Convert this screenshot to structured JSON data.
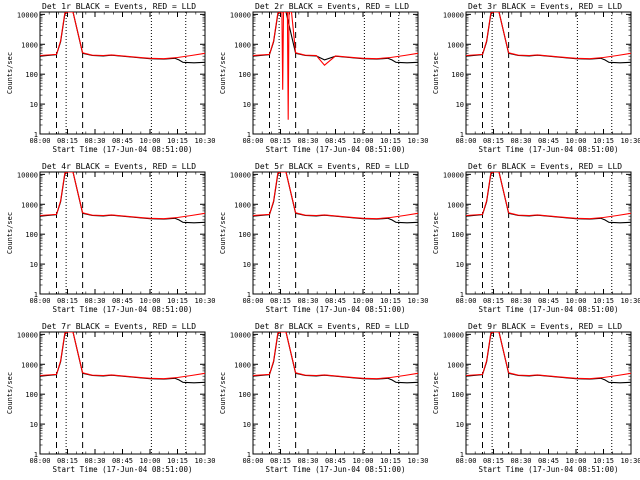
{
  "figure": {
    "xlabel": "Start Time (17-Jun-04 08:51:00)",
    "ylabel": "Counts/sec",
    "x_tick_labels": [
      "08:00",
      "08:15",
      "08:30",
      "08:45",
      "10:00",
      "10:15",
      "10:30"
    ],
    "y_tick_labels": [
      "1",
      "10",
      "100",
      "1000",
      "10000"
    ]
  },
  "chart_data": [
    {
      "type": "line",
      "title": "Det 1r  BLACK = Events, RED = LLD",
      "xlabel": "Start Time (17-Jun-04 08:51:00)",
      "ylabel": "Counts/sec",
      "y_scale": "log",
      "ylim": [
        1,
        12000
      ],
      "xlim": [
        0,
        6
      ],
      "series": [
        {
          "name": "Events",
          "color": "#000000",
          "x": [
            0,
            0.6,
            0.75,
            0.9,
            1.0,
            1.2,
            1.55,
            1.9,
            2.3,
            2.6,
            3.0,
            3.5,
            4.0,
            4.5,
            4.9,
            5.05,
            5.2,
            5.6,
            6.0
          ],
          "y": [
            400,
            450,
            1200,
            10000,
            12000,
            12000,
            500,
            420,
            410,
            430,
            400,
            360,
            330,
            320,
            340,
            300,
            250,
            240,
            250
          ]
        },
        {
          "name": "LLD",
          "color": "#ff0000",
          "x": [
            0,
            0.6,
            0.75,
            0.9,
            1.0,
            1.2,
            1.55,
            1.9,
            2.3,
            2.6,
            3.0,
            3.5,
            4.0,
            4.5,
            5.0,
            5.5,
            6.0
          ],
          "y": [
            420,
            460,
            1300,
            11000,
            12000,
            12000,
            520,
            430,
            420,
            440,
            410,
            370,
            340,
            330,
            360,
            420,
            500
          ]
        }
      ],
      "dashed_lines": [
        0.6,
        1.55
      ],
      "dotted_lines": [
        0.95,
        4.05,
        5.3
      ]
    },
    {
      "type": "line",
      "title": "Det 2r  BLACK = Events, RED = LLD",
      "xlabel": "Start Time (17-Jun-04 08:51:00)",
      "ylabel": "Counts/sec",
      "y_scale": "log",
      "ylim": [
        1,
        12000
      ],
      "xlim": [
        0,
        6
      ],
      "series": [
        {
          "name": "Events",
          "color": "#000000",
          "x": [
            0,
            0.6,
            0.75,
            0.9,
            1.0,
            1.2,
            1.55,
            1.9,
            2.3,
            2.6,
            3.0,
            3.5,
            4.0,
            4.5,
            4.9,
            5.05,
            5.2,
            5.6,
            6.0
          ],
          "y": [
            400,
            450,
            1200,
            10000,
            12000,
            12000,
            500,
            420,
            410,
            300,
            400,
            360,
            330,
            320,
            340,
            300,
            250,
            240,
            250
          ]
        },
        {
          "name": "LLD",
          "color": "#ff0000",
          "x": [
            0,
            0.6,
            0.75,
            0.9,
            1.0,
            1.05,
            1.08,
            1.11,
            1.2,
            1.25,
            1.28,
            1.31,
            1.4,
            1.55,
            1.9,
            2.3,
            2.6,
            3.0,
            3.5,
            4.0,
            4.5,
            5.0,
            5.5,
            6.0
          ],
          "y": [
            420,
            460,
            1300,
            11000,
            12000,
            12000,
            30,
            12000,
            12000,
            12000,
            3,
            12000,
            12000,
            520,
            430,
            420,
            200,
            410,
            370,
            340,
            330,
            360,
            420,
            500
          ]
        }
      ],
      "dashed_lines": [
        0.6,
        1.55
      ],
      "dotted_lines": [
        0.95,
        4.05,
        5.3
      ]
    },
    {
      "type": "line",
      "title": "Det 3r  BLACK = Events, RED = LLD",
      "xlabel": "Start Time (17-Jun-04 08:51:00)",
      "ylabel": "Counts/sec",
      "y_scale": "log",
      "ylim": [
        1,
        12000
      ],
      "xlim": [
        0,
        6
      ],
      "series": [
        {
          "name": "Events",
          "color": "#000000",
          "x": [
            0,
            0.6,
            0.75,
            0.9,
            1.0,
            1.2,
            1.55,
            1.9,
            2.3,
            2.6,
            3.0,
            3.5,
            4.0,
            4.5,
            4.9,
            5.05,
            5.2,
            5.6,
            6.0
          ],
          "y": [
            400,
            450,
            1200,
            10000,
            12000,
            12000,
            500,
            420,
            410,
            430,
            400,
            360,
            330,
            320,
            340,
            300,
            250,
            240,
            250
          ]
        },
        {
          "name": "LLD",
          "color": "#ff0000",
          "x": [
            0,
            0.6,
            0.75,
            0.9,
            1.0,
            1.2,
            1.55,
            1.9,
            2.3,
            2.6,
            3.0,
            3.5,
            4.0,
            4.5,
            5.0,
            5.5,
            6.0
          ],
          "y": [
            420,
            460,
            1300,
            11000,
            12000,
            12000,
            520,
            430,
            420,
            440,
            410,
            370,
            340,
            330,
            360,
            420,
            500
          ]
        }
      ],
      "dashed_lines": [
        0.6,
        1.55
      ],
      "dotted_lines": [
        0.95,
        4.05,
        5.3
      ]
    },
    {
      "type": "line",
      "title": "Det 4r  BLACK = Events, RED = LLD",
      "xlabel": "Start Time (17-Jun-04 08:51:00)",
      "ylabel": "Counts/sec",
      "y_scale": "log",
      "ylim": [
        1,
        12000
      ],
      "xlim": [
        0,
        6
      ],
      "series": [
        {
          "name": "Events",
          "color": "#000000",
          "x": [
            0,
            0.6,
            0.75,
            0.9,
            1.0,
            1.2,
            1.55,
            1.9,
            2.3,
            2.6,
            3.0,
            3.5,
            4.0,
            4.5,
            4.9,
            5.05,
            5.2,
            5.6,
            6.0
          ],
          "y": [
            400,
            450,
            1200,
            10000,
            12000,
            12000,
            500,
            420,
            410,
            430,
            400,
            360,
            330,
            320,
            340,
            300,
            250,
            240,
            250
          ]
        },
        {
          "name": "LLD",
          "color": "#ff0000",
          "x": [
            0,
            0.6,
            0.75,
            0.9,
            1.0,
            1.2,
            1.55,
            1.9,
            2.3,
            2.6,
            3.0,
            3.5,
            4.0,
            4.5,
            5.0,
            5.5,
            6.0
          ],
          "y": [
            420,
            460,
            1300,
            11000,
            12000,
            12000,
            520,
            430,
            420,
            440,
            410,
            370,
            340,
            330,
            360,
            420,
            500
          ]
        }
      ],
      "dashed_lines": [
        0.6,
        1.55
      ],
      "dotted_lines": [
        0.95,
        4.05,
        5.3
      ]
    },
    {
      "type": "line",
      "title": "Det 5r  BLACK = Events, RED = LLD",
      "xlabel": "Start Time (17-Jun-04 08:51:00)",
      "ylabel": "Counts/sec",
      "y_scale": "log",
      "ylim": [
        1,
        12000
      ],
      "xlim": [
        0,
        6
      ],
      "series": [
        {
          "name": "Events",
          "color": "#000000",
          "x": [
            0,
            0.6,
            0.75,
            0.9,
            1.0,
            1.2,
            1.55,
            1.9,
            2.3,
            2.6,
            3.0,
            3.5,
            4.0,
            4.5,
            4.9,
            5.05,
            5.2,
            5.6,
            6.0
          ],
          "y": [
            400,
            450,
            1200,
            10000,
            12000,
            12000,
            500,
            420,
            410,
            430,
            400,
            360,
            330,
            320,
            340,
            300,
            250,
            240,
            250
          ]
        },
        {
          "name": "LLD",
          "color": "#ff0000",
          "x": [
            0,
            0.6,
            0.75,
            0.9,
            1.0,
            1.2,
            1.55,
            1.9,
            2.3,
            2.6,
            3.0,
            3.5,
            4.0,
            4.5,
            5.0,
            5.5,
            6.0
          ],
          "y": [
            420,
            460,
            1300,
            11000,
            12000,
            12000,
            520,
            430,
            420,
            440,
            410,
            370,
            340,
            330,
            360,
            420,
            500
          ]
        }
      ],
      "dashed_lines": [
        0.6,
        1.55
      ],
      "dotted_lines": [
        0.95,
        4.05,
        5.3
      ]
    },
    {
      "type": "line",
      "title": "Det 6r  BLACK = Events, RED = LLD",
      "xlabel": "Start Time (17-Jun-04 08:51:00)",
      "ylabel": "Counts/sec",
      "y_scale": "log",
      "ylim": [
        1,
        12000
      ],
      "xlim": [
        0,
        6
      ],
      "series": [
        {
          "name": "Events",
          "color": "#000000",
          "x": [
            0,
            0.6,
            0.75,
            0.9,
            1.0,
            1.2,
            1.55,
            1.9,
            2.3,
            2.6,
            3.0,
            3.5,
            4.0,
            4.5,
            4.9,
            5.05,
            5.2,
            5.6,
            6.0
          ],
          "y": [
            400,
            450,
            1200,
            10000,
            12000,
            12000,
            500,
            420,
            410,
            430,
            400,
            360,
            330,
            320,
            340,
            300,
            250,
            240,
            250
          ]
        },
        {
          "name": "LLD",
          "color": "#ff0000",
          "x": [
            0,
            0.6,
            0.75,
            0.9,
            1.0,
            1.2,
            1.55,
            1.9,
            2.3,
            2.6,
            3.0,
            3.5,
            4.0,
            4.5,
            5.0,
            5.5,
            6.0
          ],
          "y": [
            420,
            460,
            1300,
            11000,
            12000,
            12000,
            520,
            430,
            420,
            440,
            410,
            370,
            340,
            330,
            360,
            420,
            500
          ]
        }
      ],
      "dashed_lines": [
        0.6,
        1.55
      ],
      "dotted_lines": [
        0.95,
        4.05,
        5.3
      ]
    },
    {
      "type": "line",
      "title": "Det 7r  BLACK = Events, RED = LLD",
      "xlabel": "Start Time (17-Jun-04 08:51:00)",
      "ylabel": "Counts/sec",
      "y_scale": "log",
      "ylim": [
        1,
        12000
      ],
      "xlim": [
        0,
        6
      ],
      "series": [
        {
          "name": "Events",
          "color": "#000000",
          "x": [
            0,
            0.6,
            0.75,
            0.9,
            1.0,
            1.2,
            1.55,
            1.9,
            2.3,
            2.6,
            3.0,
            3.5,
            4.0,
            4.5,
            4.9,
            5.05,
            5.2,
            5.6,
            6.0
          ],
          "y": [
            400,
            450,
            1200,
            10000,
            12000,
            12000,
            500,
            420,
            410,
            430,
            400,
            360,
            330,
            320,
            340,
            300,
            250,
            240,
            250
          ]
        },
        {
          "name": "LLD",
          "color": "#ff0000",
          "x": [
            0,
            0.6,
            0.75,
            0.9,
            1.0,
            1.2,
            1.55,
            1.9,
            2.3,
            2.6,
            3.0,
            3.5,
            4.0,
            4.5,
            5.0,
            5.5,
            6.0
          ],
          "y": [
            420,
            460,
            1300,
            11000,
            12000,
            12000,
            520,
            430,
            420,
            440,
            410,
            370,
            340,
            330,
            360,
            420,
            500
          ]
        }
      ],
      "dashed_lines": [
        0.6,
        1.55
      ],
      "dotted_lines": [
        0.95,
        4.05,
        5.3
      ]
    },
    {
      "type": "line",
      "title": "Det 8r  BLACK = Events, RED = LLD",
      "xlabel": "Start Time (17-Jun-04 08:51:00)",
      "ylabel": "Counts/sec",
      "y_scale": "log",
      "ylim": [
        1,
        12000
      ],
      "xlim": [
        0,
        6
      ],
      "series": [
        {
          "name": "Events",
          "color": "#000000",
          "x": [
            0,
            0.6,
            0.75,
            0.9,
            1.0,
            1.2,
            1.55,
            1.9,
            2.3,
            2.6,
            3.0,
            3.5,
            4.0,
            4.5,
            4.9,
            5.05,
            5.2,
            5.6,
            6.0
          ],
          "y": [
            400,
            450,
            1200,
            10000,
            12000,
            12000,
            500,
            420,
            410,
            430,
            400,
            360,
            330,
            320,
            340,
            300,
            250,
            240,
            250
          ]
        },
        {
          "name": "LLD",
          "color": "#ff0000",
          "x": [
            0,
            0.6,
            0.75,
            0.9,
            1.0,
            1.2,
            1.55,
            1.9,
            2.3,
            2.6,
            3.0,
            3.5,
            4.0,
            4.5,
            5.0,
            5.5,
            6.0
          ],
          "y": [
            420,
            460,
            1300,
            11000,
            12000,
            12000,
            520,
            430,
            420,
            440,
            410,
            370,
            340,
            330,
            360,
            420,
            500
          ]
        }
      ],
      "dashed_lines": [
        0.6,
        1.55
      ],
      "dotted_lines": [
        0.95,
        4.05,
        5.3
      ]
    },
    {
      "type": "line",
      "title": "Det 9r  BLACK = Events, RED = LLD",
      "xlabel": "Start Time (17-Jun-04 08:51:00)",
      "ylabel": "Counts/sec",
      "y_scale": "log",
      "ylim": [
        1,
        12000
      ],
      "xlim": [
        0,
        6
      ],
      "series": [
        {
          "name": "Events",
          "color": "#000000",
          "x": [
            0,
            0.6,
            0.75,
            0.9,
            1.0,
            1.2,
            1.55,
            1.9,
            2.3,
            2.6,
            3.0,
            3.5,
            4.0,
            4.5,
            4.9,
            5.05,
            5.2,
            5.6,
            6.0
          ],
          "y": [
            400,
            450,
            1200,
            10000,
            12000,
            12000,
            500,
            420,
            410,
            430,
            400,
            360,
            330,
            320,
            340,
            300,
            250,
            240,
            250
          ]
        },
        {
          "name": "LLD",
          "color": "#ff0000",
          "x": [
            0,
            0.6,
            0.75,
            0.9,
            1.0,
            1.2,
            1.55,
            1.9,
            2.3,
            2.6,
            3.0,
            3.5,
            4.0,
            4.5,
            5.0,
            5.5,
            6.0
          ],
          "y": [
            420,
            460,
            1300,
            11000,
            12000,
            12000,
            520,
            430,
            420,
            440,
            410,
            370,
            340,
            330,
            360,
            420,
            500
          ]
        }
      ],
      "dashed_lines": [
        0.6,
        1.55
      ],
      "dotted_lines": [
        0.95,
        4.05,
        5.3
      ]
    }
  ]
}
